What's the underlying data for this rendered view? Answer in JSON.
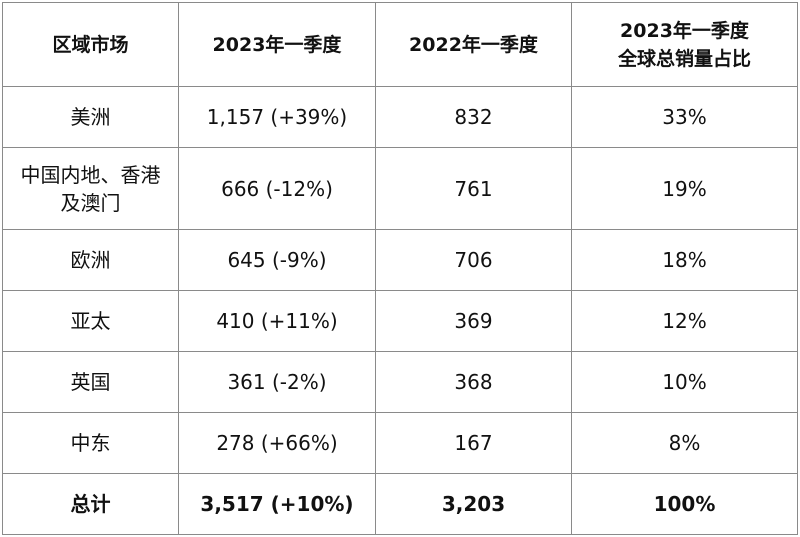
{
  "headers": {
    "region": "区域市场",
    "q1_2023": "2023年一季度",
    "q1_2022": "2022年一季度",
    "share_line1": "2023年一季度",
    "share_line2": "全球总销量占比"
  },
  "rows": [
    {
      "region": "美洲",
      "q1_2023": "1,157 (+39%)",
      "q1_2022": "832",
      "share": "33%"
    },
    {
      "region_line1": "中国内地、香港",
      "region_line2": "及澳门",
      "q1_2023": "666 (-12%)",
      "q1_2022": "761",
      "share": "19%"
    },
    {
      "region": "欧洲",
      "q1_2023": "645 (-9%)",
      "q1_2022": "706",
      "share": "18%"
    },
    {
      "region": "亚太",
      "q1_2023": "410 (+11%)",
      "q1_2022": "369",
      "share": "12%"
    },
    {
      "region": "英国",
      "q1_2023": "361 (-2%)",
      "q1_2022": "368",
      "share": "10%"
    },
    {
      "region": "中东",
      "q1_2023": "278 (+66%)",
      "q1_2022": "167",
      "share": "8%"
    }
  ],
  "total": {
    "label": "总计",
    "q1_2023": "3,517 (+10%)",
    "q1_2022": "3,203",
    "share": "100%"
  }
}
